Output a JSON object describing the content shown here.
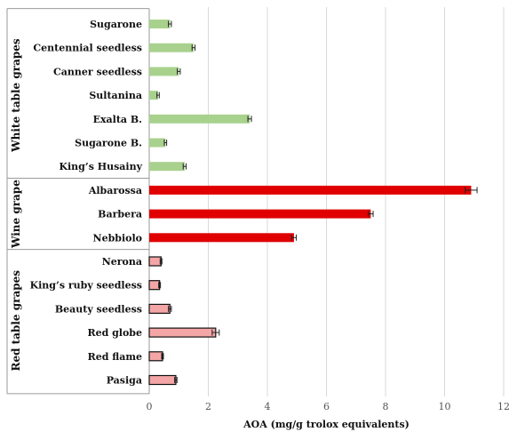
{
  "chart_data": {
    "type": "bar",
    "orientation": "horizontal",
    "xlabel": "AOA (mg/g trolox equivalents)",
    "xlim": [
      0,
      12
    ],
    "xticks": [
      "0",
      "2",
      "4",
      "6",
      "8",
      "10",
      "12"
    ],
    "grid": "vertical",
    "groups": [
      {
        "name": "White table grapes",
        "color": "#a9d18e",
        "outline": "none",
        "categories": [
          "Sugarone",
          "Centennial seedless",
          "Canner seedless",
          "Sultanina",
          "Exalta B.",
          "Sugarone B.",
          "King’s Husainy"
        ],
        "values": [
          0.7,
          1.5,
          1.0,
          0.3,
          3.4,
          0.55,
          1.2
        ],
        "errors": [
          0.05,
          0.05,
          0.05,
          0.04,
          0.06,
          0.04,
          0.05
        ]
      },
      {
        "name": "Wine grape",
        "color": "#e00000",
        "outline": "none",
        "categories": [
          "Albarossa",
          "Barbera",
          "Nebbiolo"
        ],
        "values": [
          10.9,
          7.5,
          4.9
        ],
        "errors": [
          0.2,
          0.08,
          0.08
        ]
      },
      {
        "name": "Red table grapes",
        "color": "#f4a6a6",
        "outline": "#111111",
        "categories": [
          "Nerona",
          "King’s ruby seedless",
          "Beauty seedless",
          "Red globe",
          "Red flame",
          "Pasiga"
        ],
        "values": [
          0.4,
          0.35,
          0.7,
          2.25,
          0.45,
          0.9
        ],
        "errors": [
          0.03,
          0.03,
          0.05,
          0.12,
          0.03,
          0.04
        ]
      }
    ]
  }
}
